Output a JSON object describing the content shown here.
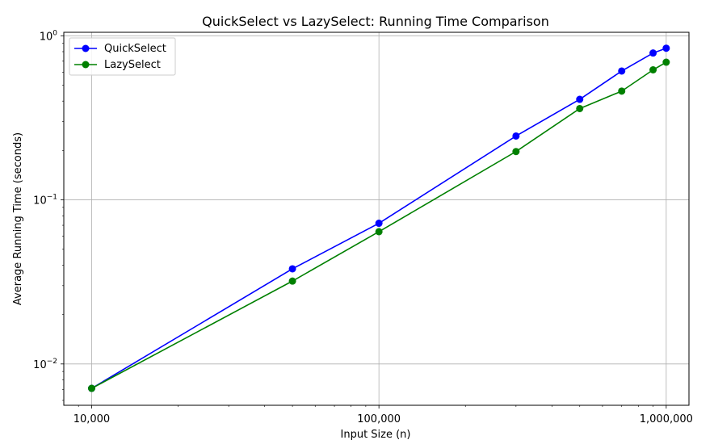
{
  "chart_data": {
    "type": "line",
    "title": "QuickSelect vs LazySelect: Running Time Comparison",
    "xlabel": "Input Size (n)",
    "ylabel": "Average Running Time (seconds)",
    "xscale": "log",
    "yscale": "log",
    "xlim": [
      8000,
      1200000
    ],
    "ylim": [
      0.0056,
      1.05
    ],
    "grid": true,
    "legend_position": "top-left",
    "x_ticks": [
      {
        "value": 10000,
        "label": "10,000"
      },
      {
        "value": 100000,
        "label": "100,000"
      },
      {
        "value": 1000000,
        "label": "1,000,000"
      }
    ],
    "y_ticks": [
      {
        "value": 0.01,
        "base": "10",
        "exp": "−2"
      },
      {
        "value": 0.1,
        "base": "10",
        "exp": "−1"
      },
      {
        "value": 1,
        "base": "10",
        "exp": "0"
      }
    ],
    "x": [
      10000,
      50000,
      100000,
      300000,
      500000,
      700000,
      900000,
      1000000
    ],
    "series": [
      {
        "name": "QuickSelect",
        "color": "#0000ff",
        "values": [
          0.0071,
          0.038,
          0.072,
          0.245,
          0.41,
          0.61,
          0.785,
          0.84
        ]
      },
      {
        "name": "LazySelect",
        "color": "#008000",
        "x": [
          10000,
          50000,
          100000,
          300000,
          500000,
          700000,
          900000,
          1000000
        ],
        "values": [
          0.0071,
          0.032,
          0.064,
          0.197,
          0.36,
          0.46,
          0.62,
          0.69
        ]
      }
    ]
  }
}
